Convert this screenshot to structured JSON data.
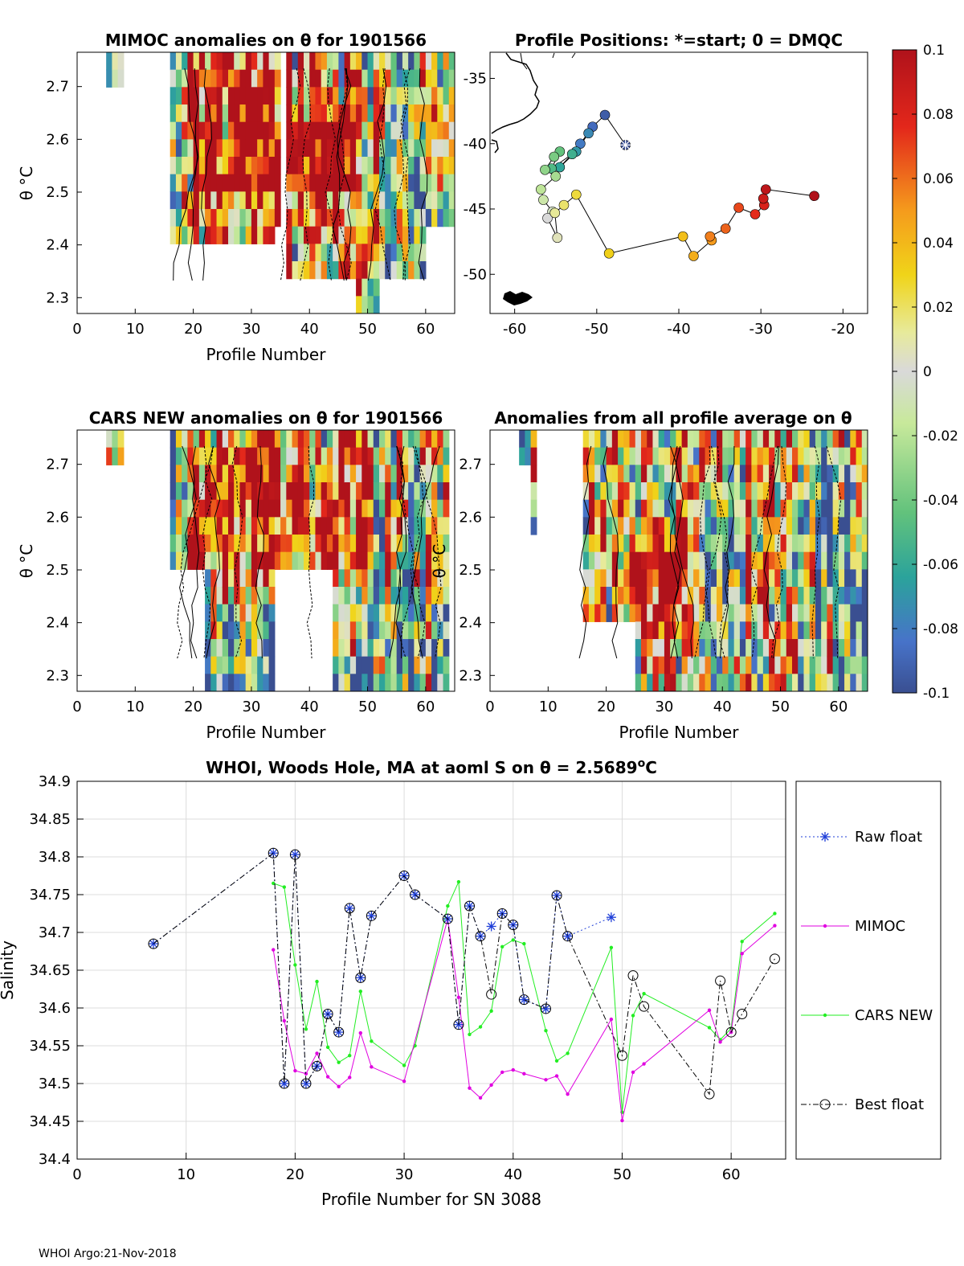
{
  "footer": "WHOI Argo:21-Nov-2018",
  "colors": {
    "raw_float": "#1f3fd8",
    "mimoc": "#e000e0",
    "cars_new": "#22ee22",
    "best_float": "#000000",
    "grid": "#dcdcdc"
  },
  "panels": {
    "mimoc": {
      "title": "MIMOC anomalies on θ  for 1901566",
      "ylabel": "θ °C",
      "xlabel": "Profile Number",
      "xticks": [
        "0",
        "10",
        "20",
        "30",
        "40",
        "50",
        "60"
      ],
      "yticks": [
        "2.3",
        "2.4",
        "2.5",
        "2.6",
        "2.7"
      ]
    },
    "positions": {
      "title": "Profile Positions: *=start; 0 = DMQC",
      "xticks": [
        "-60",
        "-50",
        "-40",
        "-30",
        "-20"
      ],
      "yticks": [
        "-35",
        "-40",
        "-45",
        "-50"
      ]
    },
    "cars": {
      "title": "CARS NEW anomalies on θ for 1901566",
      "ylabel": "θ °C",
      "xlabel": "Profile Number",
      "xticks": [
        "0",
        "10",
        "20",
        "30",
        "40",
        "50",
        "60"
      ],
      "yticks": [
        "2.3",
        "2.4",
        "2.5",
        "2.6",
        "2.7"
      ]
    },
    "allavg": {
      "title": "Anomalies from all profile average on θ",
      "ylabel": "θ °C",
      "xlabel": "Profile Number",
      "xticks": [
        "0",
        "10",
        "20",
        "30",
        "40",
        "50",
        "60"
      ],
      "yticks": [
        "2.3",
        "2.4",
        "2.5",
        "2.6",
        "2.7"
      ]
    },
    "colorbar": {
      "ticks": [
        "0.1",
        "0.08",
        "0.06",
        "0.04",
        "0.02",
        "0",
        "-0.02",
        "-0.04",
        "-0.06",
        "-0.08",
        "-0.1"
      ]
    }
  },
  "chart_data": [
    {
      "type": "line",
      "title": "WHOI, Woods Hole, MA at aoml S on θ = 2.5689°C",
      "xlabel": "Profile Number for SN 3088",
      "ylabel": "Salinity",
      "xlim": [
        0,
        65
      ],
      "ylim": [
        34.4,
        34.9
      ],
      "xticks": [
        "0",
        "10",
        "20",
        "30",
        "40",
        "50",
        "60"
      ],
      "yticks": [
        "34.4",
        "34.45",
        "34.5",
        "34.55",
        "34.6",
        "34.65",
        "34.7",
        "34.75",
        "34.8",
        "34.85",
        "34.9"
      ],
      "grid": true,
      "legend_position": "right",
      "series": [
        {
          "name": "Raw float",
          "marker": "asterisk",
          "style": "dotted",
          "x": [
            7,
            18,
            19,
            20,
            21,
            22,
            23,
            24,
            25,
            26,
            27,
            30,
            31,
            34,
            35,
            36,
            37,
            38,
            39,
            40,
            41,
            43,
            44,
            45,
            49
          ],
          "y": [
            34.685,
            34.805,
            34.5,
            34.803,
            34.5,
            34.523,
            34.592,
            34.568,
            34.732,
            34.64,
            34.722,
            34.775,
            34.75,
            34.718,
            34.578,
            34.735,
            34.695,
            34.708,
            34.725,
            34.71,
            34.611,
            34.599,
            34.749,
            34.695,
            34.72
          ]
        },
        {
          "name": "MIMOC",
          "marker": "dot",
          "style": "solid",
          "x": [
            18,
            19,
            20,
            21,
            22,
            23,
            24,
            25,
            26,
            27,
            30,
            34,
            35,
            36,
            37,
            38,
            39,
            40,
            41,
            43,
            44,
            45,
            49,
            50,
            51,
            52,
            58,
            59,
            60,
            61,
            64
          ],
          "y": [
            34.677,
            34.583,
            34.517,
            34.513,
            34.54,
            34.509,
            34.496,
            34.508,
            34.567,
            34.522,
            34.503,
            34.718,
            34.614,
            34.494,
            34.481,
            34.498,
            34.515,
            34.518,
            34.513,
            34.505,
            34.51,
            34.486,
            34.585,
            34.451,
            34.515,
            34.526,
            34.597,
            34.555,
            34.568,
            34.672,
            34.709
          ]
        },
        {
          "name": "CARS NEW",
          "marker": "dot",
          "style": "solid",
          "x": [
            18,
            19,
            20,
            21,
            22,
            23,
            24,
            25,
            26,
            27,
            30,
            31,
            34,
            35,
            36,
            37,
            38,
            39,
            40,
            41,
            43,
            44,
            45,
            49,
            50,
            51,
            52,
            58,
            59,
            60,
            61,
            64
          ],
          "y": [
            34.765,
            34.76,
            34.657,
            34.572,
            34.635,
            34.548,
            34.528,
            34.537,
            34.622,
            34.556,
            34.524,
            34.55,
            34.735,
            34.767,
            34.565,
            34.575,
            34.596,
            34.681,
            34.69,
            34.685,
            34.57,
            34.53,
            34.54,
            34.68,
            34.462,
            34.59,
            34.619,
            34.574,
            34.558,
            34.573,
            34.688,
            34.725
          ]
        },
        {
          "name": "Best float",
          "marker": "circle",
          "style": "dashdot",
          "x": [
            7,
            18,
            19,
            20,
            21,
            22,
            23,
            24,
            25,
            26,
            27,
            30,
            31,
            34,
            35,
            36,
            37,
            38,
            39,
            40,
            41,
            43,
            44,
            45,
            50,
            51,
            52,
            58,
            59,
            60,
            61,
            64
          ],
          "y": [
            34.685,
            34.805,
            34.5,
            34.803,
            34.5,
            34.523,
            34.592,
            34.568,
            34.732,
            34.64,
            34.722,
            34.775,
            34.75,
            34.718,
            34.578,
            34.735,
            34.695,
            34.618,
            34.725,
            34.71,
            34.611,
            34.599,
            34.749,
            34.695,
            34.537,
            34.643,
            34.602,
            34.486,
            34.636,
            34.568,
            34.592,
            34.665
          ]
        }
      ]
    },
    {
      "type": "scatter",
      "title": "Profile Positions: *=start; 0 = DMQC",
      "xlim": [
        -63,
        -17
      ],
      "ylim": [
        -53,
        -33
      ],
      "colormap_by": "profile order",
      "lon": [
        -46.5,
        -49,
        -50.5,
        -52,
        -51,
        -52.5,
        -54.5,
        -53,
        -55.5,
        -54.5,
        -55.2,
        -56.3,
        -55,
        -56.8,
        -56.5,
        -55.4,
        -56,
        -54.8,
        -55.1,
        -54,
        -52.5,
        -48.5,
        -39.5,
        -38.2,
        -36,
        -36.2,
        -34.3,
        -32.7,
        -30.7,
        -29.6,
        -29.7,
        -29.4,
        -23.5
      ],
      "lat": [
        -40.1,
        -37.8,
        -38.7,
        -40,
        -39.2,
        -40.6,
        -41.8,
        -40.8,
        -41.9,
        -40.6,
        -41,
        -42,
        -42.5,
        -43.5,
        -44.3,
        -45.2,
        -45.7,
        -47.2,
        -45.3,
        -44.7,
        -43.9,
        -48.4,
        -47.1,
        -48.6,
        -47.4,
        -47.1,
        -46.5,
        -44.9,
        -45.4,
        -44.7,
        -44.2,
        -43.5,
        -44.0
      ]
    }
  ]
}
